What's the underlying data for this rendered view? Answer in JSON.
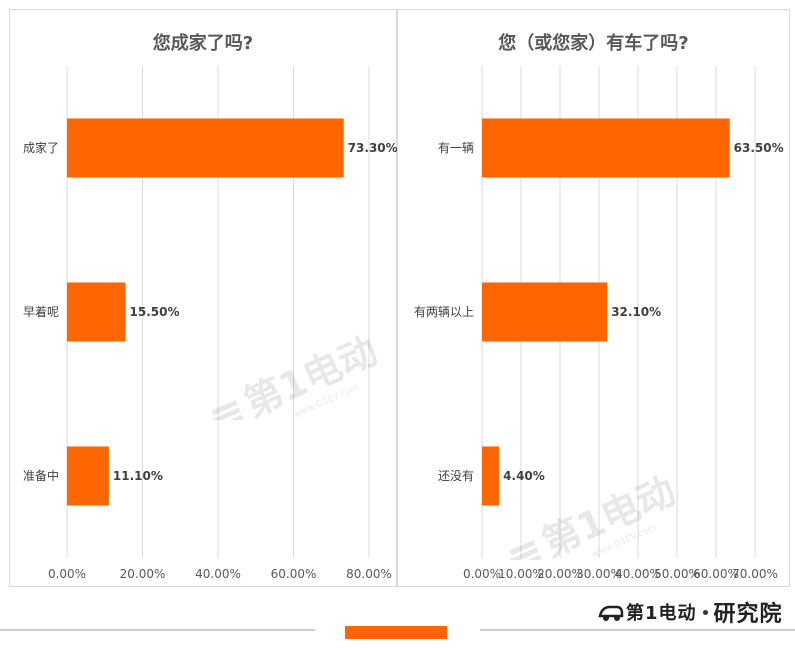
{
  "chart_data": [
    {
      "type": "bar",
      "orientation": "horizontal",
      "title": "您成家了吗?",
      "categories": [
        "成家了",
        "早着呢",
        "准备中"
      ],
      "values": [
        73.3,
        15.5,
        11.1
      ],
      "value_labels": [
        "73.30%",
        "15.50%",
        "11.10%"
      ],
      "xlim": [
        0,
        80
      ],
      "xticks": [
        0,
        20,
        40,
        60,
        80
      ],
      "xtick_labels": [
        "0.00%",
        "20.00%",
        "40.00%",
        "60.00%",
        "80.00%"
      ],
      "grid": "vertical",
      "bar_color": "#ff6600"
    },
    {
      "type": "bar",
      "orientation": "horizontal",
      "title": "您（或您家）有车了吗?",
      "categories": [
        "有一辆",
        "有两辆以上",
        "还没有"
      ],
      "values": [
        63.5,
        32.1,
        4.4
      ],
      "value_labels": [
        "63.50%",
        "32.10%",
        "4.40%"
      ],
      "xlim": [
        0,
        70
      ],
      "xticks": [
        0,
        10,
        20,
        30,
        40,
        50,
        60,
        70
      ],
      "xtick_labels": [
        "0.00%",
        "10.00%",
        "20.00%",
        "30.00%",
        "40.00%",
        "50.00%",
        "60.00%",
        "70.00%"
      ],
      "grid": "vertical",
      "bar_color": "#ff6600"
    }
  ],
  "watermark": {
    "text": "第1电动",
    "url": "www.D1EV.com"
  },
  "brand": {
    "logo": "第1电动",
    "suffix": "研究院"
  },
  "colors": {
    "accent": "#ff6600",
    "grid": "#d9d9d9"
  }
}
